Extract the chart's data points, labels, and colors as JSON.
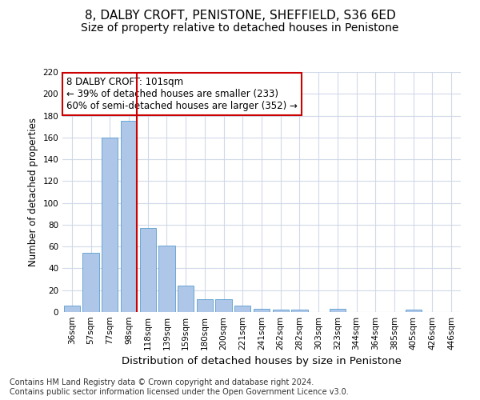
{
  "title": "8, DALBY CROFT, PENISTONE, SHEFFIELD, S36 6ED",
  "subtitle": "Size of property relative to detached houses in Penistone",
  "xlabel": "Distribution of detached houses by size in Penistone",
  "ylabel": "Number of detached properties",
  "categories": [
    "36sqm",
    "57sqm",
    "77sqm",
    "98sqm",
    "118sqm",
    "139sqm",
    "159sqm",
    "180sqm",
    "200sqm",
    "221sqm",
    "241sqm",
    "262sqm",
    "282sqm",
    "303sqm",
    "323sqm",
    "344sqm",
    "364sqm",
    "385sqm",
    "405sqm",
    "426sqm",
    "446sqm"
  ],
  "values": [
    6,
    54,
    160,
    175,
    77,
    61,
    24,
    12,
    12,
    6,
    3,
    2,
    2,
    0,
    3,
    0,
    0,
    0,
    2,
    0,
    0
  ],
  "bar_color": "#aec6e8",
  "bar_edge_color": "#5a9ecf",
  "vline_x_index": 3,
  "vline_color": "#cc0000",
  "annotation_line1": "8 DALBY CROFT: 101sqm",
  "annotation_line2": "← 39% of detached houses are smaller (233)",
  "annotation_line3": "60% of semi-detached houses are larger (352) →",
  "annotation_box_color": "#ffffff",
  "annotation_box_edge_color": "#cc0000",
  "ylim": [
    0,
    220
  ],
  "yticks": [
    0,
    20,
    40,
    60,
    80,
    100,
    120,
    140,
    160,
    180,
    200,
    220
  ],
  "background_color": "#ffffff",
  "grid_color": "#d0d8e8",
  "footer_line1": "Contains HM Land Registry data © Crown copyright and database right 2024.",
  "footer_line2": "Contains public sector information licensed under the Open Government Licence v3.0.",
  "title_fontsize": 11,
  "subtitle_fontsize": 10,
  "xlabel_fontsize": 9.5,
  "ylabel_fontsize": 8.5,
  "tick_fontsize": 7.5,
  "footer_fontsize": 7,
  "annotation_fontsize": 8.5
}
